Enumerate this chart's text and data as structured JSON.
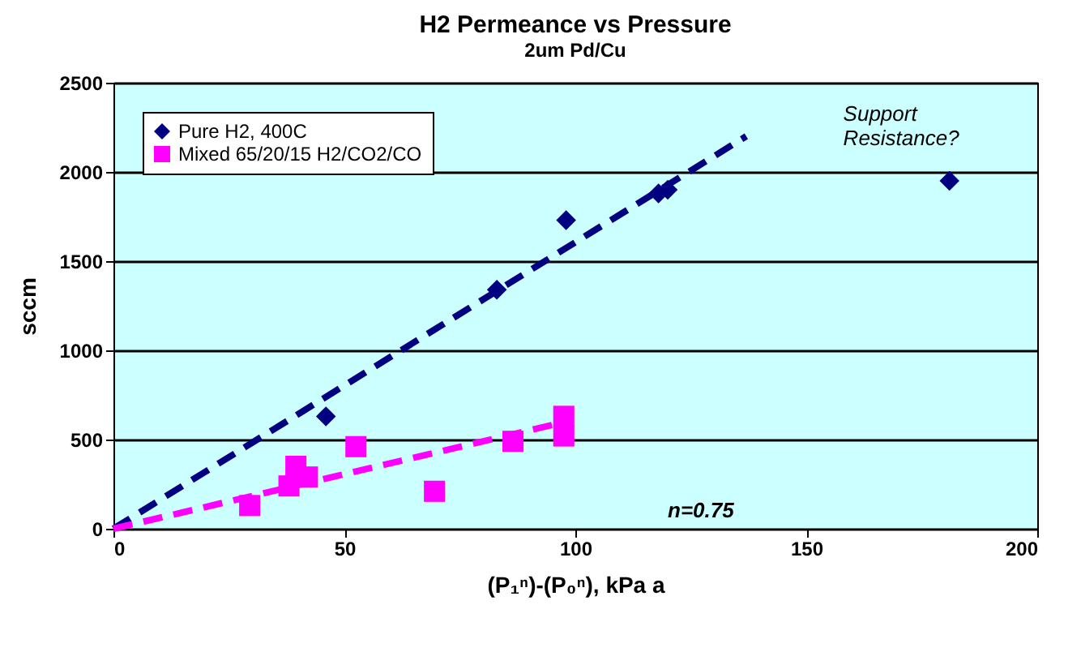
{
  "chart_data": {
    "type": "scatter",
    "title": "H2 Permeance vs Pressure",
    "subtitle": "2um Pd/Cu",
    "xlabel": "(P₁ⁿ)-(P₀ⁿ), kPa a",
    "ylabel": "sccm",
    "xlim": [
      0,
      200
    ],
    "xticks": [
      0,
      50,
      100,
      150,
      200
    ],
    "ylim": [
      0,
      2500
    ],
    "yticks": [
      0,
      500,
      1000,
      1500,
      2000,
      2500
    ],
    "grid": "y",
    "legend": "top left",
    "annotations": [
      "Support Resistance?",
      "n=0.75"
    ],
    "series": [
      {
        "name": "Pure H2, 400C",
        "color": "#000080",
        "marker": "diamond",
        "x": [
          46,
          83,
          98,
          118,
          120,
          181
        ],
        "values": [
          630,
          1340,
          1730,
          1880,
          1900,
          1950
        ]
      },
      {
        "name": "Mixed 65/20/15 H2/CO2/CO",
        "color": "#ff00ff",
        "marker": "square",
        "x": [
          29.5,
          38,
          39.5,
          42,
          52.5,
          69.5,
          86.5,
          97.5,
          97.5
        ],
        "values": [
          130,
          240,
          350,
          290,
          460,
          210,
          490,
          520,
          630
        ]
      },
      {
        "color": "#000080",
        "type": "line",
        "line_style": "dashed",
        "marker": "none",
        "x": [
          0,
          137
        ],
        "values": [
          0,
          2200
        ]
      },
      {
        "color": "#ff00ff",
        "type": "line",
        "line_style": "dashed",
        "marker": "none",
        "x": [
          0,
          98
        ],
        "values": [
          0,
          600
        ]
      }
    ]
  }
}
